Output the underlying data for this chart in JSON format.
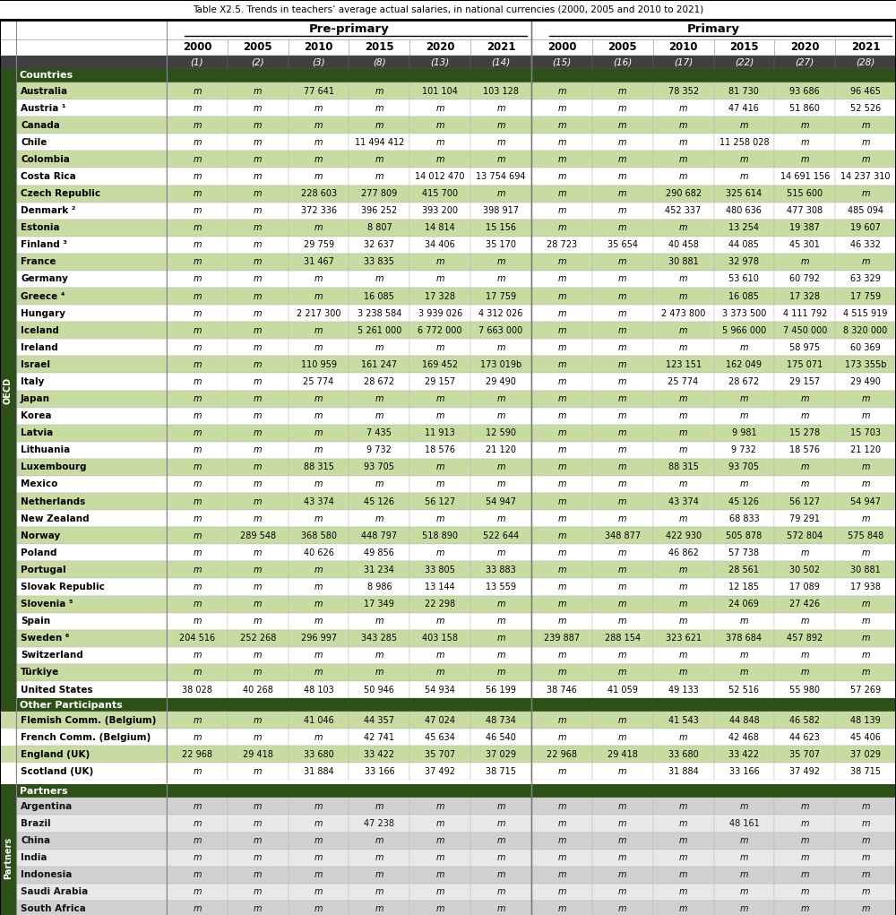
{
  "title": "Table X2.5. Trends in teachers’ average actual salaries, in national currencies (2000, 2005 and 2010 to 2021)",
  "years": [
    "2000",
    "2005",
    "2010",
    "2015",
    "2020",
    "2021"
  ],
  "col_nums_preprimary": [
    "(1)",
    "(2)",
    "(3)",
    "(8)",
    "(13)",
    "(14)"
  ],
  "col_nums_primary": [
    "(15)",
    "(16)",
    "(17)",
    "(22)",
    "(27)",
    "(28)"
  ],
  "rows": [
    {
      "name": "Australia",
      "group": "OECD",
      "pp": [
        "m",
        "m",
        "77 641",
        "m",
        "101 104",
        "103 128"
      ],
      "pr": [
        "m",
        "m",
        "78 352",
        "81 730",
        "93 686",
        "96 465"
      ]
    },
    {
      "name": "Austria ¹",
      "group": "OECD",
      "pp": [
        "m",
        "m",
        "m",
        "m",
        "m",
        "m"
      ],
      "pr": [
        "m",
        "m",
        "m",
        "47 416",
        "51 860",
        "52 526"
      ]
    },
    {
      "name": "Canada",
      "group": "OECD",
      "pp": [
        "m",
        "m",
        "m",
        "m",
        "m",
        "m"
      ],
      "pr": [
        "m",
        "m",
        "m",
        "m",
        "m",
        "m"
      ]
    },
    {
      "name": "Chile",
      "group": "OECD",
      "pp": [
        "m",
        "m",
        "m",
        "11 494 412",
        "m",
        "m"
      ],
      "pr": [
        "m",
        "m",
        "m",
        "11 258 028",
        "m",
        "m"
      ]
    },
    {
      "name": "Colombia",
      "group": "OECD",
      "pp": [
        "m",
        "m",
        "m",
        "m",
        "m",
        "m"
      ],
      "pr": [
        "m",
        "m",
        "m",
        "m",
        "m",
        "m"
      ]
    },
    {
      "name": "Costa Rica",
      "group": "OECD",
      "pp": [
        "m",
        "m",
        "m",
        "m",
        "14 012 470",
        "13 754 694"
      ],
      "pr": [
        "m",
        "m",
        "m",
        "m",
        "14 691 156",
        "14 237 310"
      ]
    },
    {
      "name": "Czech Republic",
      "group": "OECD",
      "pp": [
        "m",
        "m",
        "228 603",
        "277 809",
        "415 700",
        "m"
      ],
      "pr": [
        "m",
        "m",
        "290 682",
        "325 614",
        "515 600",
        "m"
      ]
    },
    {
      "name": "Denmark ²",
      "group": "OECD",
      "pp": [
        "m",
        "m",
        "372 336",
        "396 252",
        "393 200",
        "398 917"
      ],
      "pr": [
        "m",
        "m",
        "452 337",
        "480 636",
        "477 308",
        "485 094"
      ]
    },
    {
      "name": "Estonia",
      "group": "OECD",
      "pp": [
        "m",
        "m",
        "m",
        "8 807",
        "14 814",
        "15 156"
      ],
      "pr": [
        "m",
        "m",
        "m",
        "13 254",
        "19 387",
        "19 607"
      ]
    },
    {
      "name": "Finland ³",
      "group": "OECD",
      "pp": [
        "m",
        "m",
        "29 759",
        "32 637",
        "34 406",
        "35 170"
      ],
      "pr": [
        "28 723",
        "35 654",
        "40 458",
        "44 085",
        "45 301",
        "46 332"
      ]
    },
    {
      "name": "France",
      "group": "OECD",
      "pp": [
        "m",
        "m",
        "31 467",
        "33 835",
        "m",
        "m"
      ],
      "pr": [
        "m",
        "m",
        "30 881",
        "32 978",
        "m",
        "m"
      ]
    },
    {
      "name": "Germany",
      "group": "OECD",
      "pp": [
        "m",
        "m",
        "m",
        "m",
        "m",
        "m"
      ],
      "pr": [
        "m",
        "m",
        "m",
        "53 610",
        "60 792",
        "63 329"
      ]
    },
    {
      "name": "Greece ⁴",
      "group": "OECD",
      "pp": [
        "m",
        "m",
        "m",
        "16 085",
        "17 328",
        "17 759"
      ],
      "pr": [
        "m",
        "m",
        "m",
        "16 085",
        "17 328",
        "17 759"
      ]
    },
    {
      "name": "Hungary",
      "group": "OECD",
      "pp": [
        "m",
        "m",
        "2 217 300",
        "3 238 584",
        "3 939 026",
        "4 312 026"
      ],
      "pr": [
        "m",
        "m",
        "2 473 800",
        "3 373 500",
        "4 111 792",
        "4 515 919"
      ]
    },
    {
      "name": "Iceland",
      "group": "OECD",
      "pp": [
        "m",
        "m",
        "m",
        "5 261 000",
        "6 772 000",
        "7 663 000"
      ],
      "pr": [
        "m",
        "m",
        "m",
        "5 966 000",
        "7 450 000",
        "8 320 000"
      ]
    },
    {
      "name": "Ireland",
      "group": "OECD",
      "pp": [
        "m",
        "m",
        "m",
        "m",
        "m",
        "m"
      ],
      "pr": [
        "m",
        "m",
        "m",
        "m",
        "58 975",
        "60 369"
      ]
    },
    {
      "name": "Israel",
      "group": "OECD",
      "pp": [
        "m",
        "m",
        "110 959",
        "161 247",
        "169 452",
        "173 019b"
      ],
      "pr": [
        "m",
        "m",
        "123 151",
        "162 049",
        "175 071",
        "173 355b"
      ]
    },
    {
      "name": "Italy",
      "group": "OECD",
      "pp": [
        "m",
        "m",
        "25 774",
        "28 672",
        "29 157",
        "29 490"
      ],
      "pr": [
        "m",
        "m",
        "25 774",
        "28 672",
        "29 157",
        "29 490"
      ]
    },
    {
      "name": "Japan",
      "group": "OECD",
      "pp": [
        "m",
        "m",
        "m",
        "m",
        "m",
        "m"
      ],
      "pr": [
        "m",
        "m",
        "m",
        "m",
        "m",
        "m"
      ]
    },
    {
      "name": "Korea",
      "group": "OECD",
      "pp": [
        "m",
        "m",
        "m",
        "m",
        "m",
        "m"
      ],
      "pr": [
        "m",
        "m",
        "m",
        "m",
        "m",
        "m"
      ]
    },
    {
      "name": "Latvia",
      "group": "OECD",
      "pp": [
        "m",
        "m",
        "m",
        "7 435",
        "11 913",
        "12 590"
      ],
      "pr": [
        "m",
        "m",
        "m",
        "9 981",
        "15 278",
        "15 703"
      ]
    },
    {
      "name": "Lithuania",
      "group": "OECD",
      "pp": [
        "m",
        "m",
        "m",
        "9 732",
        "18 576",
        "21 120"
      ],
      "pr": [
        "m",
        "m",
        "m",
        "9 732",
        "18 576",
        "21 120"
      ]
    },
    {
      "name": "Luxembourg",
      "group": "OECD",
      "pp": [
        "m",
        "m",
        "88 315",
        "93 705",
        "m",
        "m"
      ],
      "pr": [
        "m",
        "m",
        "88 315",
        "93 705",
        "m",
        "m"
      ]
    },
    {
      "name": "Mexico",
      "group": "OECD",
      "pp": [
        "m",
        "m",
        "m",
        "m",
        "m",
        "m"
      ],
      "pr": [
        "m",
        "m",
        "m",
        "m",
        "m",
        "m"
      ]
    },
    {
      "name": "Netherlands",
      "group": "OECD",
      "pp": [
        "m",
        "m",
        "43 374",
        "45 126",
        "56 127",
        "54 947"
      ],
      "pr": [
        "m",
        "m",
        "43 374",
        "45 126",
        "56 127",
        "54 947"
      ]
    },
    {
      "name": "New Zealand",
      "group": "OECD",
      "pp": [
        "m",
        "m",
        "m",
        "m",
        "m",
        "m"
      ],
      "pr": [
        "m",
        "m",
        "m",
        "68 833",
        "79 291",
        "m"
      ]
    },
    {
      "name": "Norway",
      "group": "OECD",
      "pp": [
        "m",
        "289 548",
        "368 580",
        "448 797",
        "518 890",
        "522 644"
      ],
      "pr": [
        "m",
        "348 877",
        "422 930",
        "505 878",
        "572 804",
        "575 848"
      ]
    },
    {
      "name": "Poland",
      "group": "OECD",
      "pp": [
        "m",
        "m",
        "40 626",
        "49 856",
        "m",
        "m"
      ],
      "pr": [
        "m",
        "m",
        "46 862",
        "57 738",
        "m",
        "m"
      ]
    },
    {
      "name": "Portugal",
      "group": "OECD",
      "pp": [
        "m",
        "m",
        "m",
        "31 234",
        "33 805",
        "33 883"
      ],
      "pr": [
        "m",
        "m",
        "m",
        "28 561",
        "30 502",
        "30 881"
      ]
    },
    {
      "name": "Slovak Republic",
      "group": "OECD",
      "pp": [
        "m",
        "m",
        "m",
        "8 986",
        "13 144",
        "13 559"
      ],
      "pr": [
        "m",
        "m",
        "m",
        "12 185",
        "17 089",
        "17 938"
      ]
    },
    {
      "name": "Slovenia ⁵",
      "group": "OECD",
      "pp": [
        "m",
        "m",
        "m",
        "17 349",
        "22 298",
        "m"
      ],
      "pr": [
        "m",
        "m",
        "m",
        "24 069",
        "27 426",
        "m"
      ]
    },
    {
      "name": "Spain",
      "group": "OECD",
      "pp": [
        "m",
        "m",
        "m",
        "m",
        "m",
        "m"
      ],
      "pr": [
        "m",
        "m",
        "m",
        "m",
        "m",
        "m"
      ]
    },
    {
      "name": "Sweden ⁶",
      "group": "OECD",
      "pp": [
        "204 516",
        "252 268",
        "296 997",
        "343 285",
        "403 158",
        "m"
      ],
      "pr": [
        "239 887",
        "288 154",
        "323 621",
        "378 684",
        "457 892",
        "m"
      ]
    },
    {
      "name": "Switzerland",
      "group": "OECD",
      "pp": [
        "m",
        "m",
        "m",
        "m",
        "m",
        "m"
      ],
      "pr": [
        "m",
        "m",
        "m",
        "m",
        "m",
        "m"
      ]
    },
    {
      "name": "Türkiye",
      "group": "OECD",
      "pp": [
        "m",
        "m",
        "m",
        "m",
        "m",
        "m"
      ],
      "pr": [
        "m",
        "m",
        "m",
        "m",
        "m",
        "m"
      ]
    },
    {
      "name": "United States",
      "group": "OECD",
      "pp": [
        "38 028",
        "40 268",
        "48 103",
        "50 946",
        "54 934",
        "56 199"
      ],
      "pr": [
        "38 746",
        "41 059",
        "49 133",
        "52 516",
        "55 980",
        "57 269"
      ]
    },
    {
      "name": "Flemish Comm. (Belgium)",
      "group": "Other",
      "pp": [
        "m",
        "m",
        "41 046",
        "44 357",
        "47 024",
        "48 734"
      ],
      "pr": [
        "m",
        "m",
        "41 543",
        "44 848",
        "46 582",
        "48 139"
      ]
    },
    {
      "name": "French Comm. (Belgium)",
      "group": "Other",
      "pp": [
        "m",
        "m",
        "m",
        "42 741",
        "45 634",
        "46 540"
      ],
      "pr": [
        "m",
        "m",
        "m",
        "42 468",
        "44 623",
        "45 406"
      ]
    },
    {
      "name": "England (UK)",
      "group": "Other",
      "pp": [
        "22 968",
        "29 418",
        "33 680",
        "33 422",
        "35 707",
        "37 029"
      ],
      "pr": [
        "22 968",
        "29 418",
        "33 680",
        "33 422",
        "35 707",
        "37 029"
      ]
    },
    {
      "name": "Scotland (UK)",
      "group": "Other",
      "pp": [
        "m",
        "m",
        "31 884",
        "33 166",
        "37 492",
        "38 715"
      ],
      "pr": [
        "m",
        "m",
        "31 884",
        "33 166",
        "37 492",
        "38 715"
      ]
    },
    {
      "name": "Argentina",
      "group": "Partners",
      "pp": [
        "m",
        "m",
        "m",
        "m",
        "m",
        "m"
      ],
      "pr": [
        "m",
        "m",
        "m",
        "m",
        "m",
        "m"
      ]
    },
    {
      "name": "Brazil",
      "group": "Partners",
      "pp": [
        "m",
        "m",
        "m",
        "47 238",
        "m",
        "m"
      ],
      "pr": [
        "m",
        "m",
        "m",
        "48 161",
        "m",
        "m"
      ]
    },
    {
      "name": "China",
      "group": "Partners",
      "pp": [
        "m",
        "m",
        "m",
        "m",
        "m",
        "m"
      ],
      "pr": [
        "m",
        "m",
        "m",
        "m",
        "m",
        "m"
      ]
    },
    {
      "name": "India",
      "group": "Partners",
      "pp": [
        "m",
        "m",
        "m",
        "m",
        "m",
        "m"
      ],
      "pr": [
        "m",
        "m",
        "m",
        "m",
        "m",
        "m"
      ]
    },
    {
      "name": "Indonesia",
      "group": "Partners",
      "pp": [
        "m",
        "m",
        "m",
        "m",
        "m",
        "m"
      ],
      "pr": [
        "m",
        "m",
        "m",
        "m",
        "m",
        "m"
      ]
    },
    {
      "name": "Saudi Arabia",
      "group": "Partners",
      "pp": [
        "m",
        "m",
        "m",
        "m",
        "m",
        "m"
      ],
      "pr": [
        "m",
        "m",
        "m",
        "m",
        "m",
        "m"
      ]
    },
    {
      "name": "South Africa",
      "group": "Partners",
      "pp": [
        "m",
        "m",
        "m",
        "m",
        "m",
        "m"
      ],
      "pr": [
        "m",
        "m",
        "m",
        "m",
        "m",
        "m"
      ]
    }
  ],
  "colors": {
    "dark_green": "#2d5016",
    "dark_green2": "#3a6b1a",
    "col_num_bg": "#404040",
    "row_green": "#c8dba0",
    "row_white": "#ffffff",
    "row_gray": "#d0d0d0",
    "row_gray2": "#e8e8e8",
    "text_black": "#000000",
    "text_white": "#ffffff",
    "border_dark": "#555555",
    "border_light": "#aaaaaa",
    "sep_line": "#888888"
  }
}
